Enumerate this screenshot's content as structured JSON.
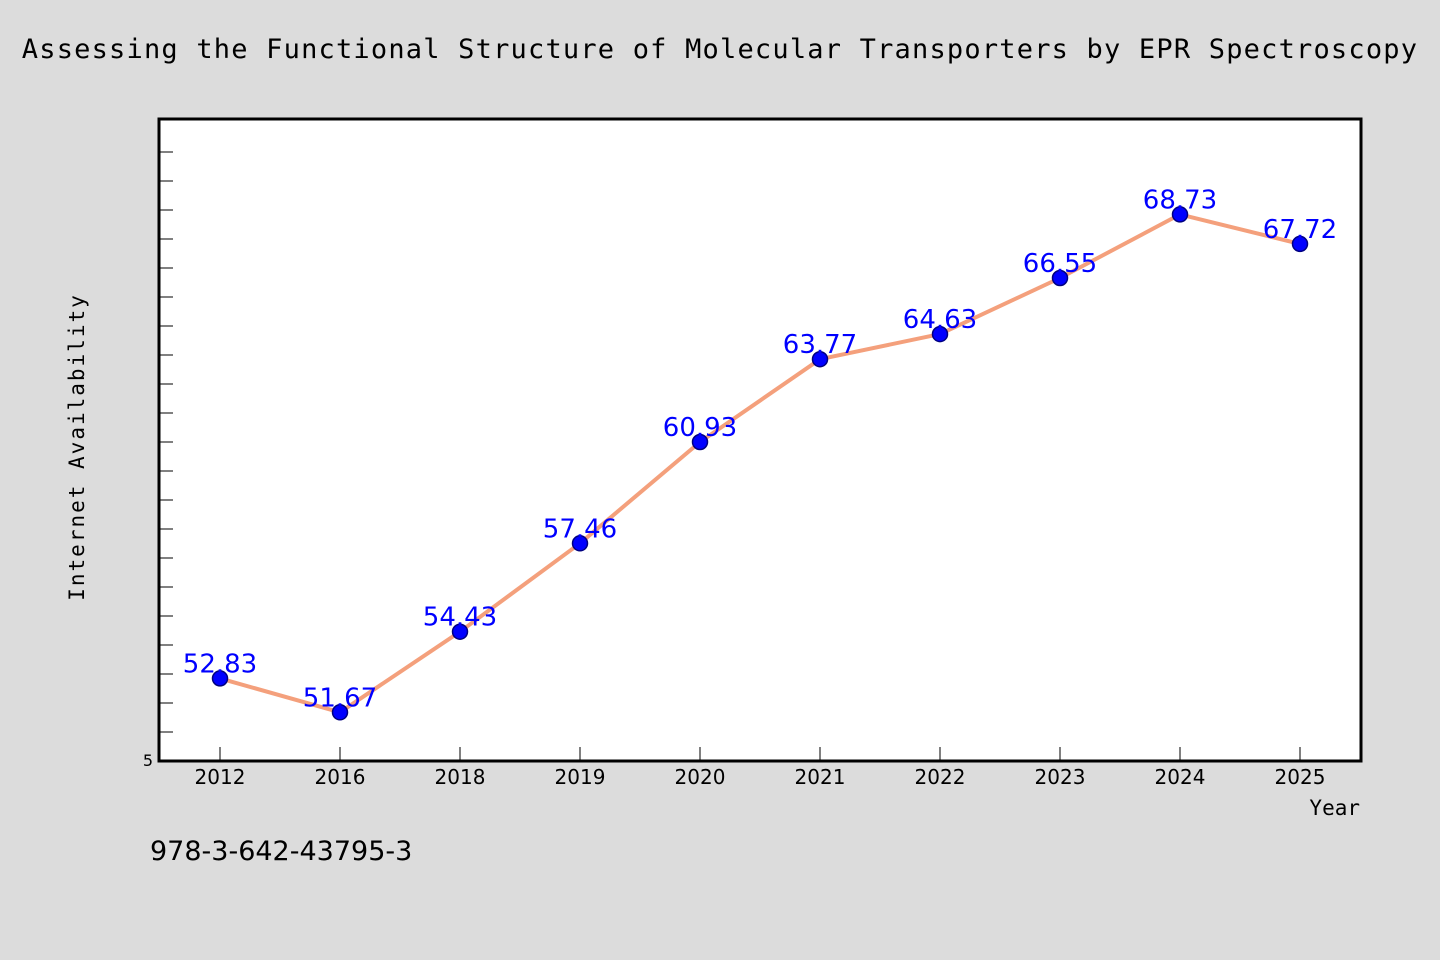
{
  "chart_data": {
    "type": "line",
    "title": "Assessing the Functional Structure of Molecular Transporters by EPR Spectroscopy",
    "xlabel": "Year",
    "ylabel": "Internet Availability",
    "categories": [
      "2012",
      "2016",
      "2018",
      "2019",
      "2020",
      "2021",
      "2022",
      "2023",
      "2024",
      "2025"
    ],
    "series": [
      {
        "values": [
          52.83,
          51.67,
          54.43,
          57.46,
          60.93,
          63.77,
          64.63,
          66.55,
          68.73,
          67.72
        ],
        "data_labels": [
          "52.83",
          "51.67",
          "54.43",
          "57.46",
          "60.93",
          "63.77",
          "64.63",
          "66.55",
          "68.73",
          "67.72"
        ]
      }
    ],
    "y_tick_label": "5",
    "ylim": [
      50.0,
      72.0
    ],
    "grid": false,
    "legend": "none",
    "colors": {
      "line": "#f4a07c",
      "marker": "#0000ff",
      "marker_edge": "#000080",
      "data_label": "#0000ff",
      "plot_bg": "#ffffff",
      "figure_bg": "#dcdcdc"
    }
  },
  "annotation": "978-3-642-43795-3"
}
